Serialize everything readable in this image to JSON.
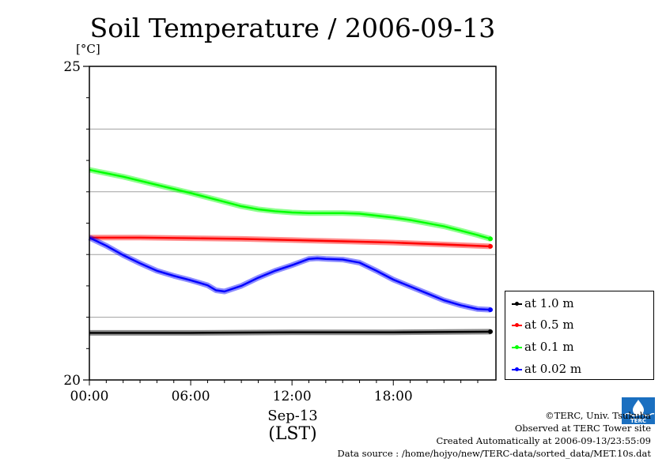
{
  "chart_data": {
    "type": "line",
    "title": "Soil Temperature / 2006-09-13",
    "ylabel": "[°C]",
    "xlabel": "Sep-13",
    "xlabel2": "(LST)",
    "ylim": [
      20,
      25
    ],
    "xlim": [
      0,
      23.75
    ],
    "y_ticks_labeled": [
      "20",
      "25"
    ],
    "y_gridlines": [
      21,
      22,
      23,
      24
    ],
    "x_ticks": [
      "00:00",
      "06:00",
      "12:00",
      "18:00"
    ],
    "x_tick_hours": [
      0,
      6,
      12,
      18
    ],
    "legend_position": "right",
    "series": [
      {
        "name": "at 1.0 m",
        "color": "#000000",
        "x": [
          0,
          6,
          12,
          18,
          23.75
        ],
        "values": [
          20.75,
          20.75,
          20.76,
          20.76,
          20.77
        ]
      },
      {
        "name": "at 0.5 m",
        "color": "#ff0000",
        "x": [
          0,
          3,
          6,
          9,
          12,
          15,
          18,
          21,
          23.75
        ],
        "values": [
          22.27,
          22.27,
          22.26,
          22.25,
          22.23,
          22.21,
          22.19,
          22.16,
          22.13
        ]
      },
      {
        "name": "at 0.1 m",
        "color": "#00ff00",
        "x": [
          0,
          2,
          4,
          6,
          8,
          9,
          10,
          11,
          12,
          13,
          14,
          15,
          16,
          17,
          18,
          19,
          20,
          21,
          22,
          23,
          23.75
        ],
        "values": [
          23.35,
          23.24,
          23.11,
          22.98,
          22.84,
          22.77,
          22.72,
          22.69,
          22.67,
          22.66,
          22.66,
          22.66,
          22.65,
          22.62,
          22.59,
          22.55,
          22.5,
          22.45,
          22.38,
          22.31,
          22.25
        ]
      },
      {
        "name": "at 0.02 m",
        "color": "#0000ff",
        "x": [
          0,
          1,
          2,
          3,
          4,
          5,
          6,
          7,
          7.5,
          8,
          9,
          10,
          11,
          12,
          13,
          13.5,
          14,
          15,
          16,
          17,
          18,
          19,
          20,
          21,
          22,
          23,
          23.75
        ],
        "values": [
          22.27,
          22.14,
          21.99,
          21.86,
          21.74,
          21.66,
          21.59,
          21.51,
          21.43,
          21.41,
          21.5,
          21.63,
          21.74,
          21.83,
          21.93,
          21.94,
          21.93,
          21.92,
          21.87,
          21.74,
          21.6,
          21.49,
          21.38,
          21.27,
          21.19,
          21.13,
          21.12
        ]
      }
    ]
  },
  "credits": {
    "line1": "©TERC, Univ. Tsukuba",
    "line2": "Observed at TERC Tower site",
    "line3": "Created Automatically at 2006-09-13/23:55:09",
    "line4": "Data source : /home/hojyo/new/TERC-data/sorted_data/MET.10s.dat"
  },
  "logo": {
    "text": "TERC",
    "color": "#1a6fc0"
  }
}
